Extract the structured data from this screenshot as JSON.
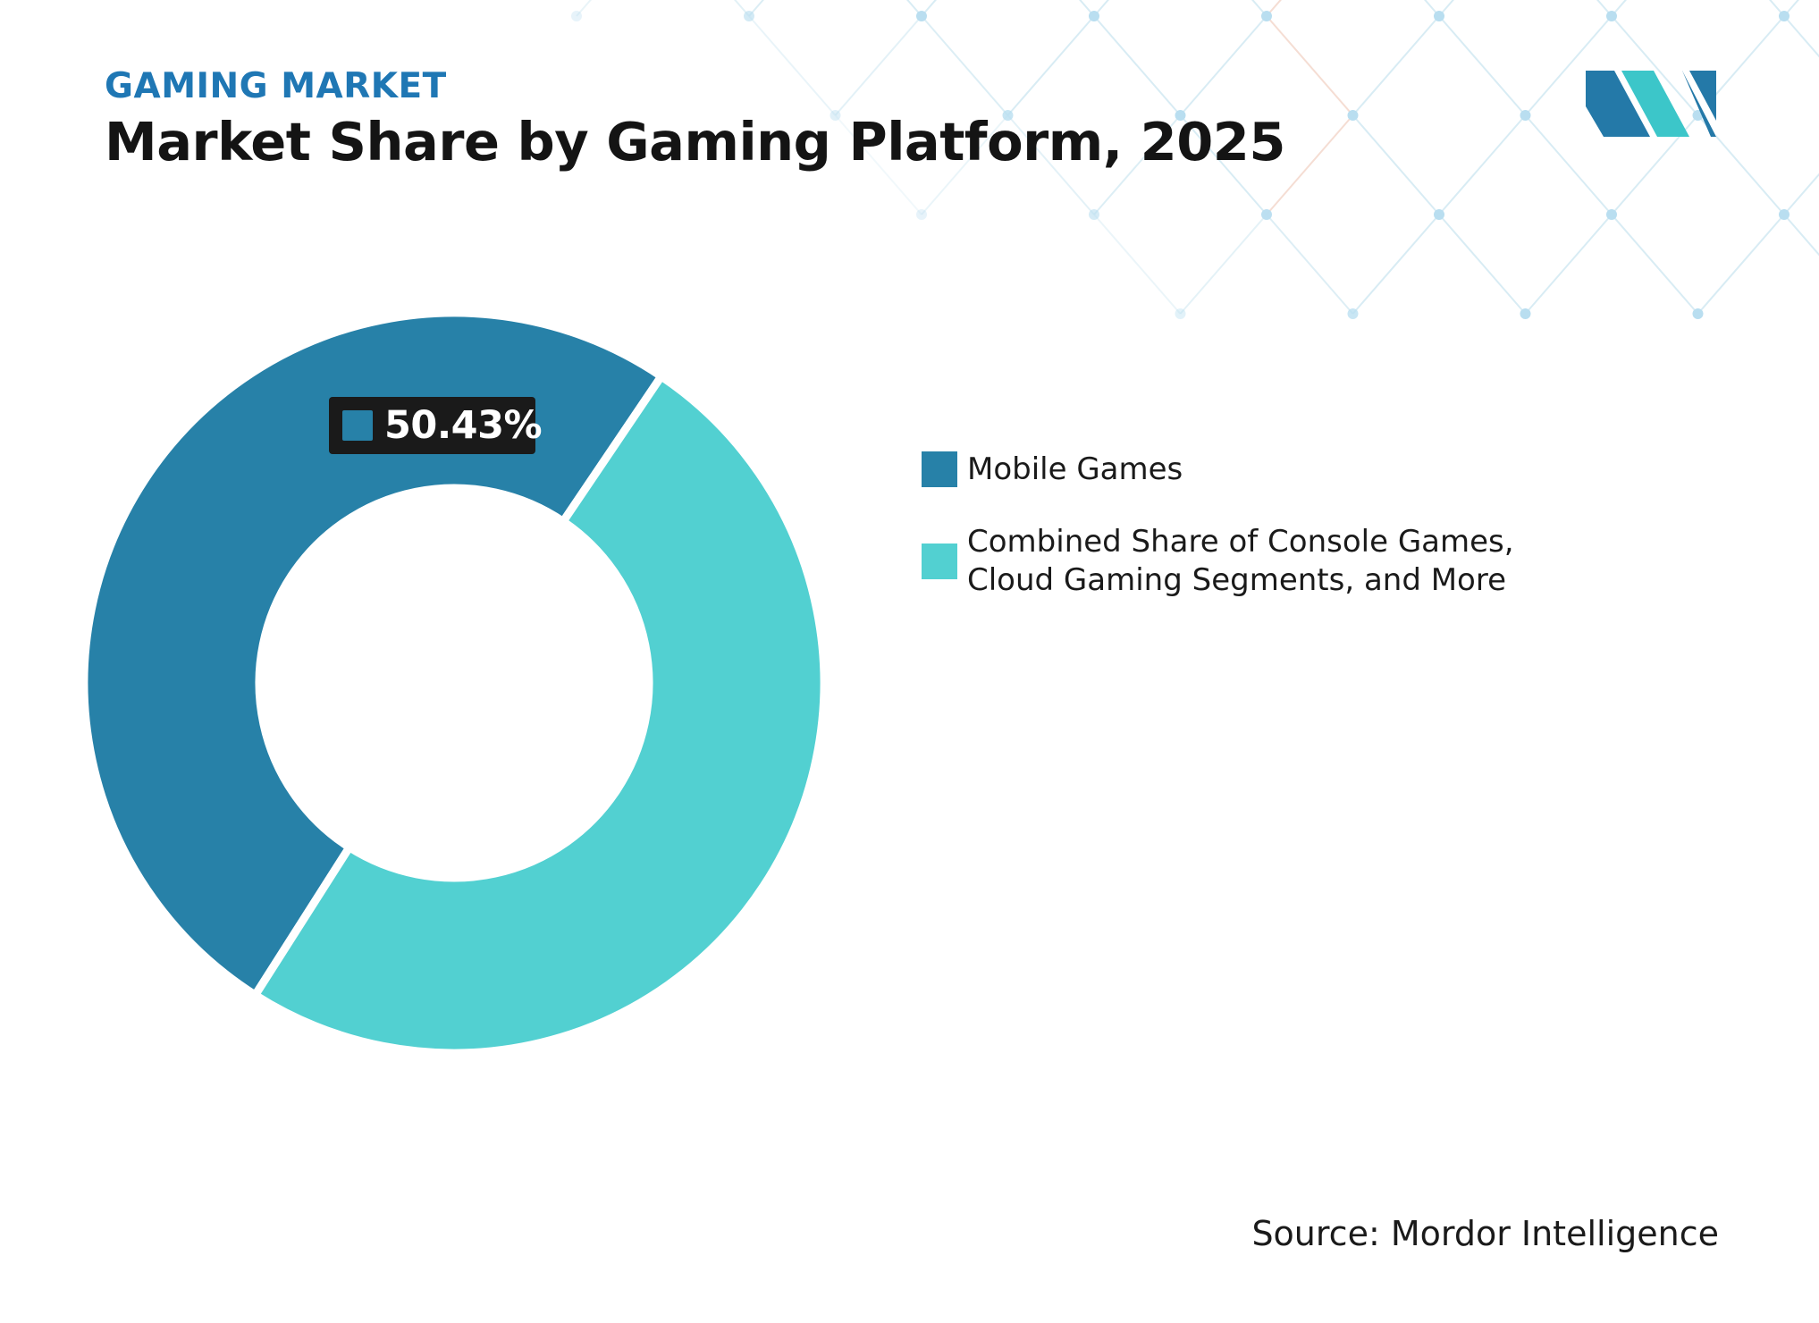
{
  "header": {
    "eyebrow": "GAMING MARKET",
    "title": "Market Share by Gaming Platform, 2025"
  },
  "colors": {
    "eyebrow": "#1f77b4",
    "mobile": "#2781a8",
    "other": "#52d0d1",
    "logo_dark": "#2479a8",
    "logo_light": "#3cc6c9",
    "pattern_line": "#d8ecf4",
    "pattern_dot": "#b9def0",
    "pattern_accent": "#f5ddd3"
  },
  "chart_data": {
    "type": "pie",
    "donut": true,
    "title": "Market Share by Gaming Platform, 2025",
    "categories": [
      "Mobile Games",
      "Combined Share of Console Games, Cloud Gaming Segments, and More"
    ],
    "values": [
      50.43,
      49.57
    ],
    "unit": "%",
    "data_labels": [
      "50.43%",
      ""
    ],
    "legend_position": "right"
  },
  "data_label": {
    "text": "50.43%"
  },
  "legend": {
    "items": [
      {
        "label": "Mobile Games"
      },
      {
        "label": "Combined Share of Console Games, Cloud Gaming Segments, and More"
      }
    ]
  },
  "source": "Source: Mordor Intelligence",
  "logo": {
    "icon": "mordor-intelligence-logo-icon"
  }
}
